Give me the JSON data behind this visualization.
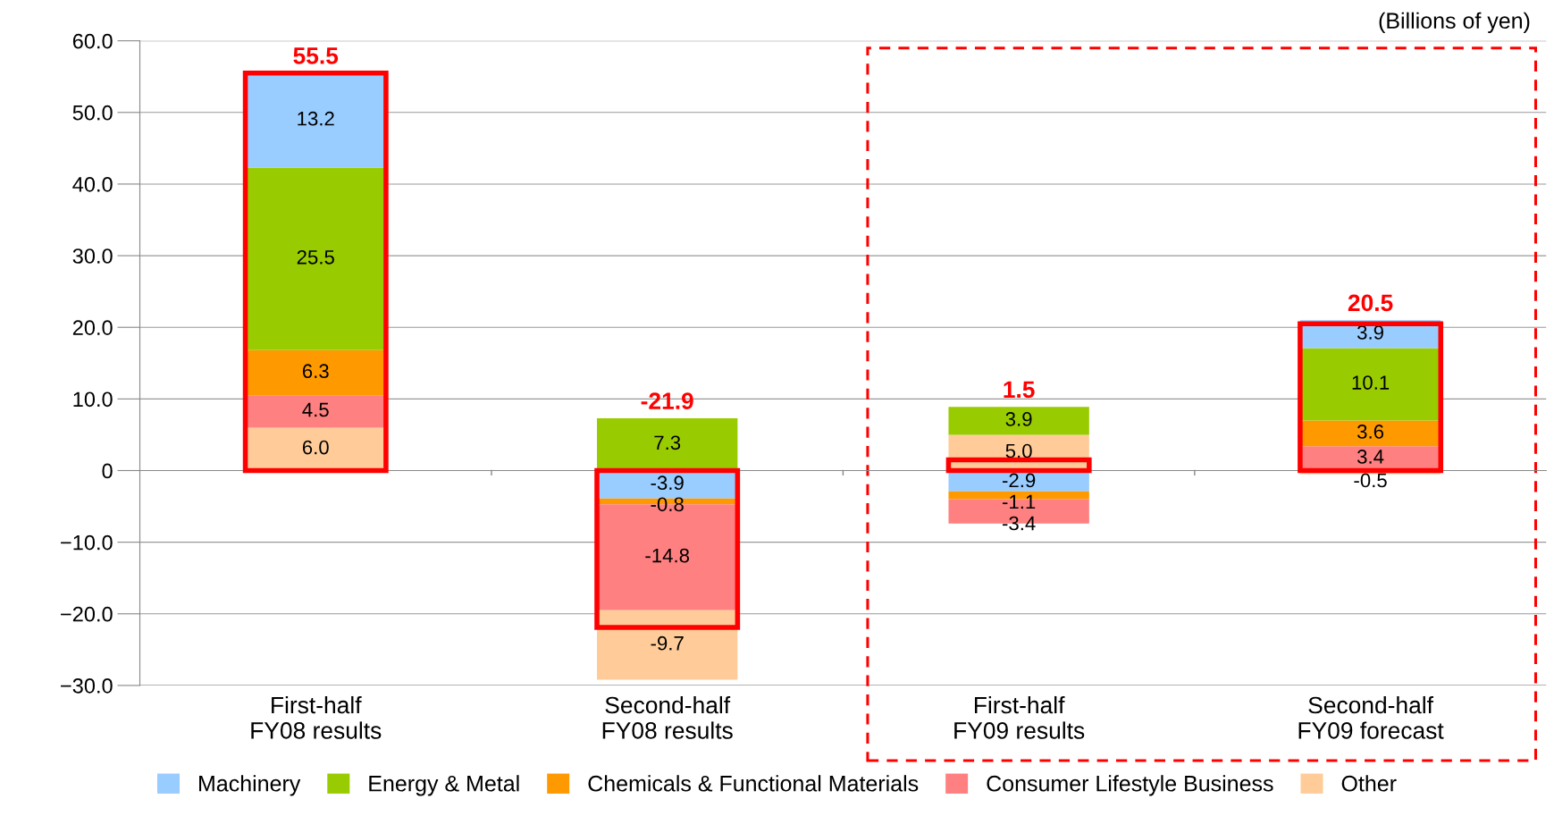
{
  "chart_data": [
    {
      "type": "bar",
      "stacked": true,
      "categories": [
        "First-half\nFY08 results",
        "Second-half\nFY08 results",
        "First-half\nFY09 results",
        "Second-half\nFY09 forecast"
      ],
      "series": [
        {
          "name": "Other",
          "color": "#ffcc99",
          "values": [
            6.0,
            -9.7,
            5.0,
            -0.5
          ],
          "value_labels": [
            "6.0",
            "-9.7",
            "5.0",
            "-0.5"
          ]
        },
        {
          "name": "Consumer Lifestyle Business",
          "color": "#ff8080",
          "values": [
            4.5,
            -14.8,
            -3.4,
            3.4
          ],
          "value_labels": [
            "4.5",
            "-14.8",
            "-3.4",
            "3.4"
          ]
        },
        {
          "name": "Chemicals & Functional Materials",
          "color": "#ff9900",
          "values": [
            6.3,
            -0.8,
            -1.1,
            3.6
          ],
          "value_labels": [
            "6.3",
            "-0.8",
            "-1.1",
            "3.6"
          ]
        },
        {
          "name": "Energy & Metal",
          "color": "#99cc00",
          "values": [
            25.5,
            7.3,
            3.9,
            10.1
          ],
          "value_labels": [
            "25.5",
            "7.3",
            "3.9",
            "10.1"
          ]
        },
        {
          "name": "Machinery",
          "color": "#99ccff",
          "values": [
            13.2,
            -3.9,
            -2.9,
            3.9
          ],
          "value_labels": [
            "13.2",
            "-3.9",
            "-2.9",
            "3.9"
          ]
        }
      ],
      "ylim": [
        -30,
        60
      ],
      "yticks": [
        {
          "value": -30,
          "label": "−30.0"
        },
        {
          "value": -20,
          "label": "−20.0"
        },
        {
          "value": -10,
          "label": "−10.0"
        },
        0,
        {
          "value": 10,
          "label": "10.0"
        },
        {
          "value": 20,
          "label": "20.0"
        },
        {
          "value": 30,
          "label": "30.0"
        },
        {
          "value": 40,
          "label": "40.0"
        },
        {
          "value": 50,
          "label": "50.0"
        },
        {
          "value": 60,
          "label": "60.0"
        }
      ],
      "grid": "y",
      "legend": "bottom",
      "annotations": [
        "(Billions of yen)"
      ]
    },
    {
      "type": "bar",
      "categories": [
        null,
        null,
        null,
        null
      ],
      "series": [
        {
          "color": "#ff0000",
          "values": [
            55.5,
            -21.9,
            1.5,
            20.5
          ],
          "value_labels": [
            "55.5",
            "-21.9",
            "1.5",
            "20.5"
          ]
        }
      ],
      "ylim": [
        -30,
        60
      ],
      "tick_labels": false
    }
  ]
}
